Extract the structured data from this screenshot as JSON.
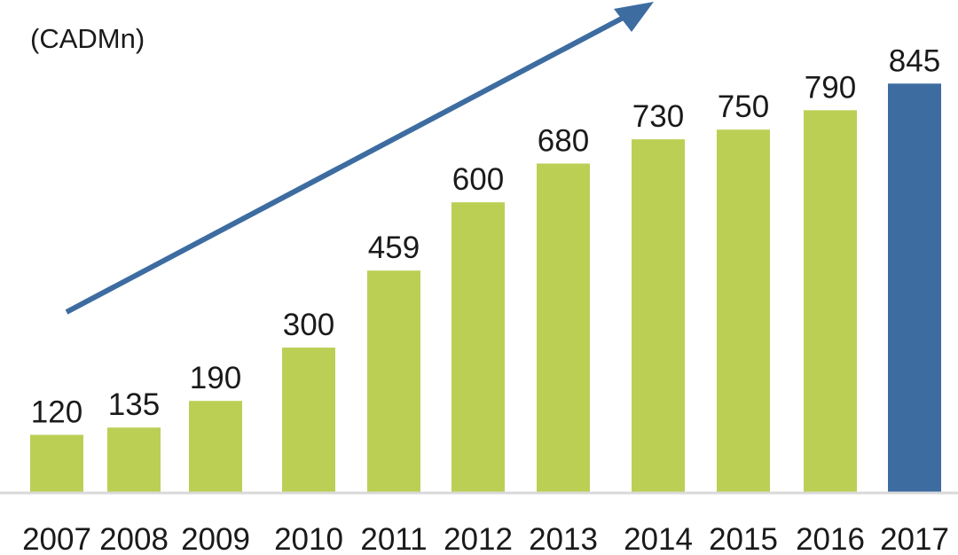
{
  "chart_data": {
    "type": "bar",
    "title": "",
    "xlabel": "",
    "ylabel": "(CADMn)",
    "categories": [
      "2007",
      "2008",
      "2009",
      "2010",
      "2011",
      "2012",
      "2013",
      "2014",
      "2015",
      "2016",
      "2017"
    ],
    "values": [
      120,
      135,
      190,
      300,
      459,
      600,
      680,
      730,
      750,
      790,
      845
    ],
    "ylim": [
      0,
      900
    ],
    "grid": false,
    "bar_colors": [
      "#bccf55",
      "#bccf55",
      "#bccf55",
      "#bccf55",
      "#bccf55",
      "#bccf55",
      "#bccf55",
      "#bccf55",
      "#bccf55",
      "#bccf55",
      "#3d6ca1"
    ],
    "annotations": [
      {
        "type": "trend-arrow",
        "direction": "up-right",
        "color": "#3d6ca1"
      }
    ]
  }
}
